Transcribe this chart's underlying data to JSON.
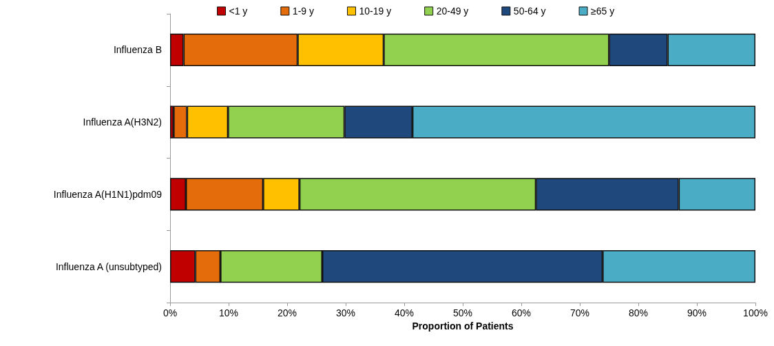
{
  "chart_data": {
    "type": "bar",
    "orientation": "horizontal",
    "stacked": true,
    "xlabel": "Proportion of Patients",
    "categories": [
      "Influenza B",
      "Influenza A(H3N2)",
      "Influenza A(H1N1)pdm09",
      "Influenza A (unsubtyped)"
    ],
    "series": [
      {
        "name": "<1 y",
        "color": "#c00000",
        "values": [
          2.3,
          0.6,
          2.7,
          4.3
        ]
      },
      {
        "name": "1-9 y",
        "color": "#e46c0a",
        "values": [
          19.5,
          2.3,
          13.2,
          4.3
        ]
      },
      {
        "name": "10-19 y",
        "color": "#ffc000",
        "values": [
          14.7,
          7.0,
          6.2,
          0
        ]
      },
      {
        "name": "20-49 y",
        "color": "#92d050",
        "values": [
          38.5,
          19.9,
          40.4,
          17.4
        ]
      },
      {
        "name": "50-64 y",
        "color": "#1f497d",
        "values": [
          10.0,
          11.6,
          24.4,
          47.9
        ]
      },
      {
        "name": "≥65 y",
        "color": "#4bacc6",
        "values": [
          15.0,
          58.6,
          13.1,
          26.1
        ]
      }
    ],
    "xlim": [
      0,
      100
    ],
    "xticks": [
      {
        "value": 0,
        "label": "0%"
      },
      {
        "value": 10,
        "label": "10%"
      },
      {
        "value": 20,
        "label": "20%"
      },
      {
        "value": 30,
        "label": "30%"
      },
      {
        "value": 40,
        "label": "40%"
      },
      {
        "value": 50,
        "label": "50%"
      },
      {
        "value": 60,
        "label": "60%"
      },
      {
        "value": 70,
        "label": "70%"
      },
      {
        "value": 80,
        "label": "80%"
      },
      {
        "value": 90,
        "label": "90%"
      },
      {
        "value": 100,
        "label": "100%"
      }
    ],
    "grid": false,
    "legend": "top"
  }
}
